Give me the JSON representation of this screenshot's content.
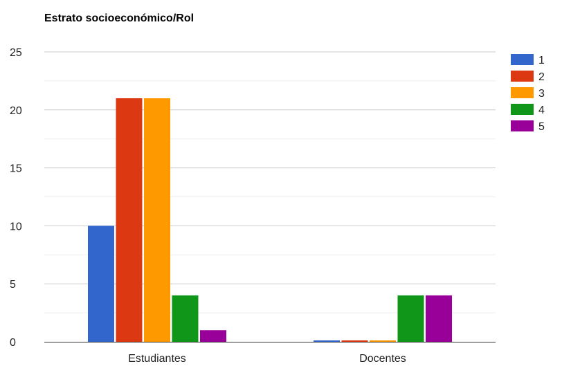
{
  "chart_data": {
    "type": "bar",
    "title": "Estrato socioeconómico/Rol",
    "xlabel": "",
    "ylabel": "",
    "categories": [
      "Estudiantes",
      "Docentes"
    ],
    "series": [
      {
        "name": "1",
        "values": [
          10,
          0
        ],
        "color": "#3366cc"
      },
      {
        "name": "2",
        "values": [
          21,
          0
        ],
        "color": "#dc3912"
      },
      {
        "name": "3",
        "values": [
          21,
          0
        ],
        "color": "#ff9900"
      },
      {
        "name": "4",
        "values": [
          4,
          4
        ],
        "color": "#109618"
      },
      {
        "name": "5",
        "values": [
          1,
          4
        ],
        "color": "#990099"
      }
    ],
    "ylim": [
      0,
      25
    ],
    "yticks": [
      0,
      5,
      10,
      15,
      20,
      25
    ],
    "grid": true,
    "legend_position": "right"
  }
}
